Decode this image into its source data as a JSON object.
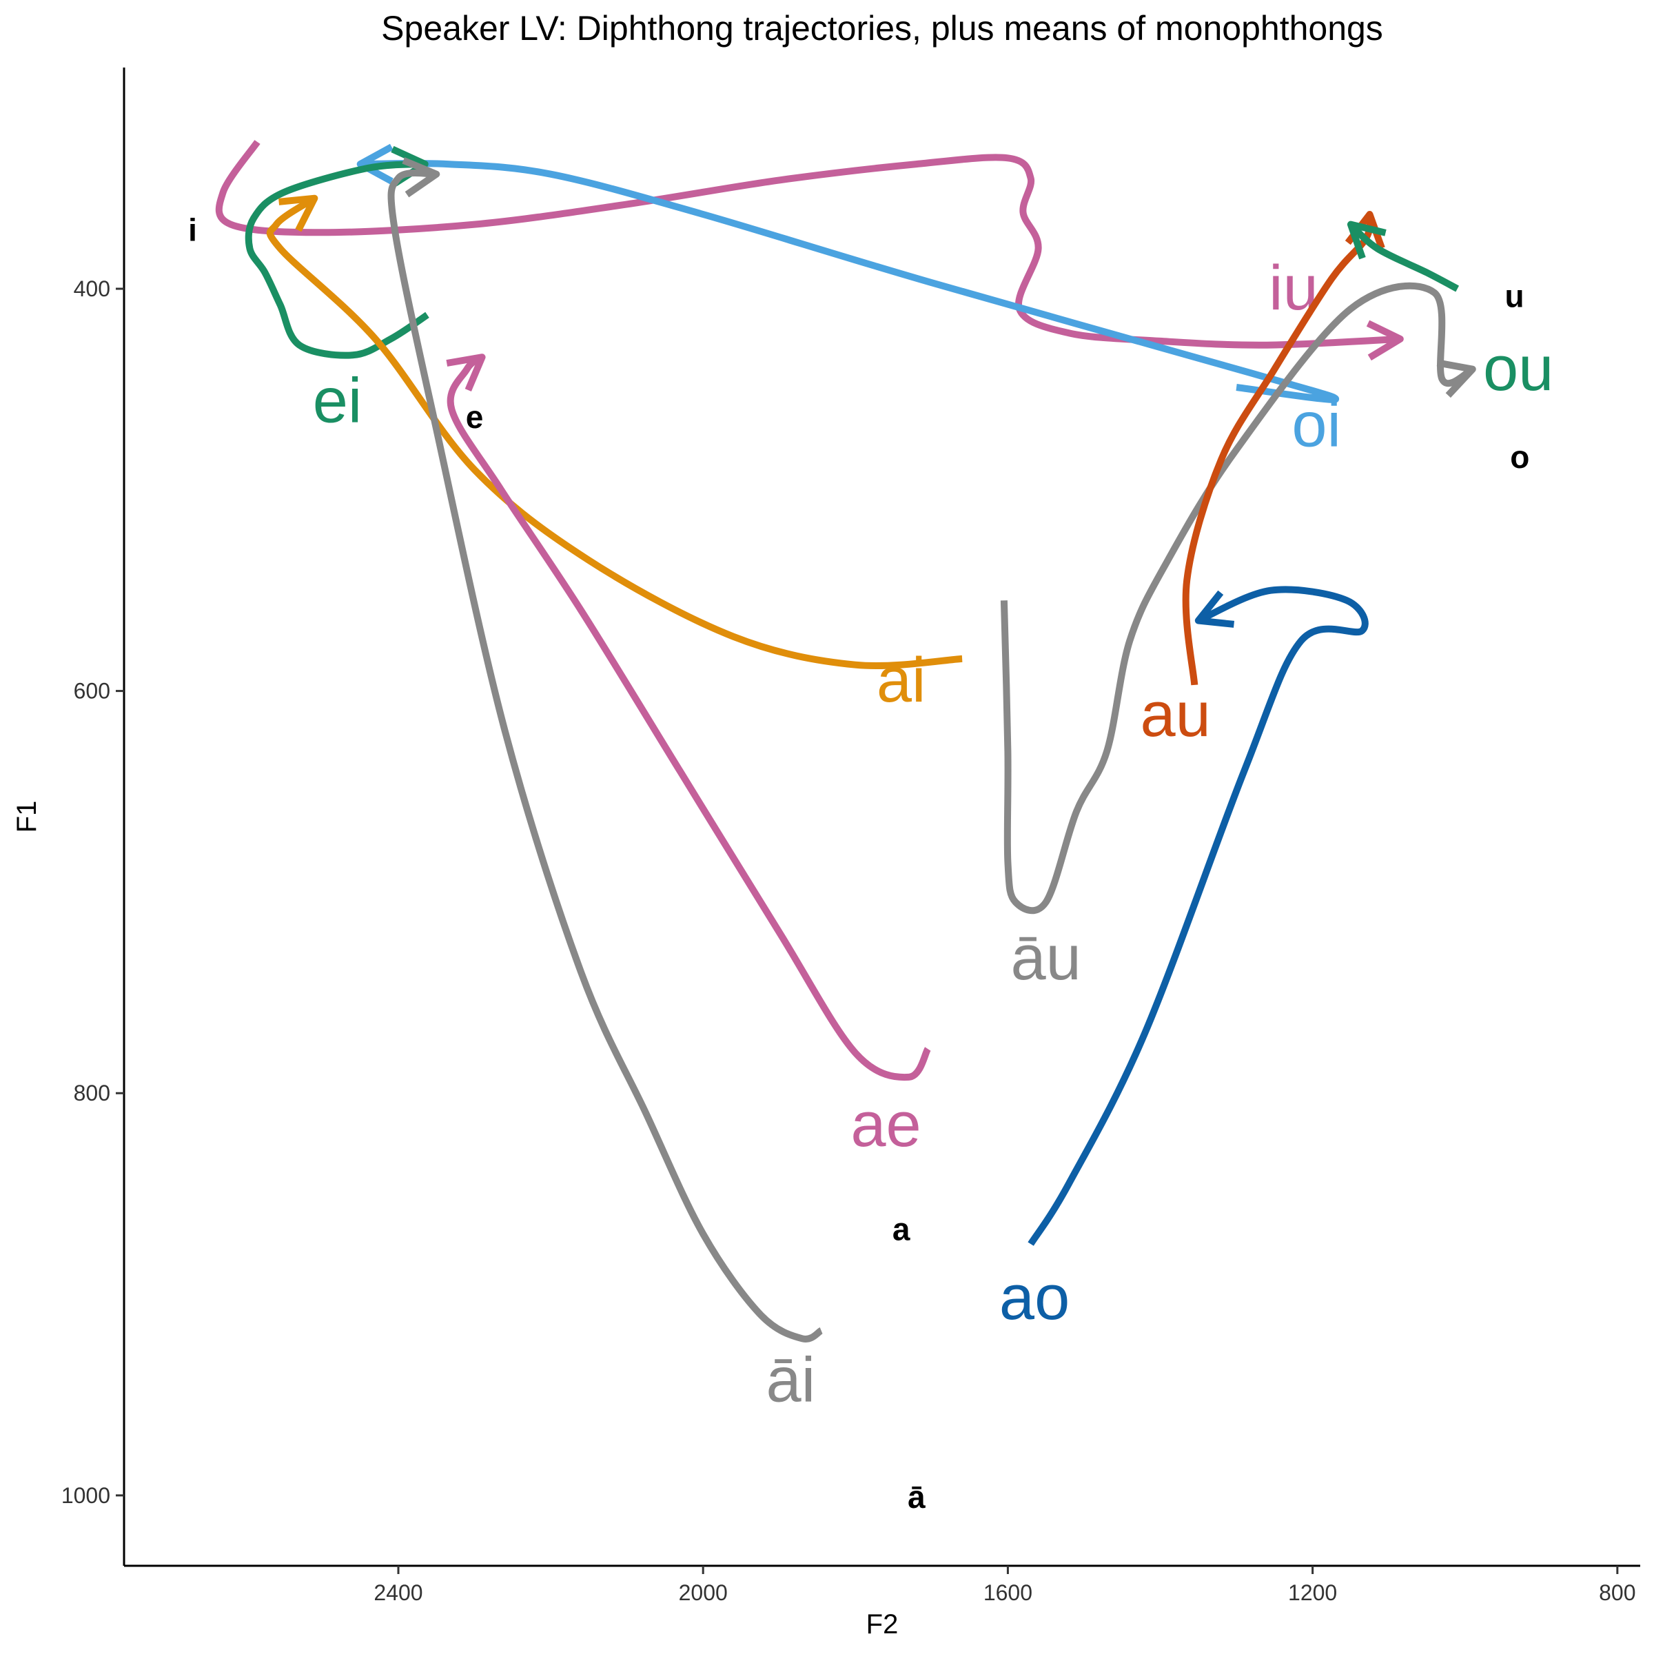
{
  "chart_data": {
    "type": "line",
    "title": "Speaker LV: Diphthong trajectories, plus means of monophthongs",
    "xlabel": "F2",
    "ylabel": "F1",
    "x_axis": {
      "reversed": true,
      "lim": [
        2760,
        770
      ],
      "ticks": [
        2400,
        2000,
        1600,
        1200,
        800
      ]
    },
    "y_axis": {
      "reversed": true,
      "lim": [
        290,
        1035
      ],
      "ticks": [
        400,
        600,
        800,
        1000
      ]
    },
    "grid": false,
    "legend": "none",
    "series": [
      {
        "name": "iu",
        "color": "#C4609A",
        "label_at": [
          1225,
          402
        ],
        "points": [
          [
            2585,
            327
          ],
          [
            2630,
            352
          ],
          [
            2620,
            368
          ],
          [
            2500,
            372
          ],
          [
            2300,
            368
          ],
          [
            2100,
            358
          ],
          [
            1900,
            346
          ],
          [
            1720,
            338
          ],
          [
            1600,
            335
          ],
          [
            1570,
            345
          ],
          [
            1580,
            362
          ],
          [
            1560,
            380
          ],
          [
            1585,
            410
          ],
          [
            1520,
            422
          ],
          [
            1400,
            426
          ],
          [
            1260,
            428
          ],
          [
            1085,
            425
          ]
        ]
      },
      {
        "name": "oi",
        "color": "#4BA3E0",
        "label_at": [
          1195,
          470
        ],
        "points": [
          [
            1300,
            449
          ],
          [
            1170,
            455
          ],
          [
            1280,
            442
          ],
          [
            1700,
            397
          ],
          [
            2000,
            363
          ],
          [
            2200,
            343
          ],
          [
            2335,
            338
          ],
          [
            2450,
            338
          ]
        ]
      },
      {
        "name": "ei",
        "color": "#1A8F63",
        "label_at": [
          2480,
          458
        ],
        "points": [
          [
            2362,
            413
          ],
          [
            2410,
            425
          ],
          [
            2460,
            433
          ],
          [
            2530,
            428
          ],
          [
            2555,
            408
          ],
          [
            2575,
            392
          ],
          [
            2595,
            380
          ],
          [
            2590,
            365
          ],
          [
            2550,
            352
          ],
          [
            2440,
            340
          ],
          [
            2365,
            338
          ]
        ]
      },
      {
        "name": "ai",
        "color": "#E08E0A",
        "label_at": [
          1740,
          597
        ],
        "points": [
          [
            1660,
            584
          ],
          [
            1800,
            587
          ],
          [
            1960,
            573
          ],
          [
            2150,
            535
          ],
          [
            2300,
            490
          ],
          [
            2430,
            425
          ],
          [
            2555,
            380
          ],
          [
            2560,
            368
          ],
          [
            2510,
            355
          ]
        ]
      },
      {
        "name": "ae",
        "color": "#C4609A",
        "label_at": [
          1760,
          818
        ],
        "points": [
          [
            1705,
            778
          ],
          [
            1730,
            792
          ],
          [
            1800,
            780
          ],
          [
            1900,
            720
          ],
          [
            2030,
            640
          ],
          [
            2160,
            560
          ],
          [
            2265,
            500
          ],
          [
            2330,
            460
          ],
          [
            2310,
            440
          ],
          [
            2290,
            434
          ]
        ]
      },
      {
        "name": "āi",
        "color": "#888888",
        "label_at": [
          1885,
          945
        ],
        "points": [
          [
            1845,
            918
          ],
          [
            1870,
            922
          ],
          [
            1925,
            910
          ],
          [
            2000,
            870
          ],
          [
            2075,
            810
          ],
          [
            2160,
            740
          ],
          [
            2260,
            620
          ],
          [
            2350,
            470
          ],
          [
            2405,
            370
          ],
          [
            2400,
            345
          ],
          [
            2350,
            343
          ]
        ]
      },
      {
        "name": "āu",
        "color": "#888888",
        "label_at": [
          1550,
          735
        ],
        "points": [
          [
            1605,
            555
          ],
          [
            1600,
            630
          ],
          [
            1600,
            685
          ],
          [
            1590,
            705
          ],
          [
            1550,
            705
          ],
          [
            1510,
            660
          ],
          [
            1470,
            630
          ],
          [
            1440,
            575
          ],
          [
            1390,
            535
          ],
          [
            1300,
            480
          ],
          [
            1150,
            410
          ],
          [
            1040,
            402
          ],
          [
            1030,
            445
          ],
          [
            990,
            440
          ]
        ]
      },
      {
        "name": "au",
        "color": "#CC4C10",
        "label_at": [
          1380,
          614
        ],
        "points": [
          [
            1355,
            597
          ],
          [
            1365,
            545
          ],
          [
            1320,
            485
          ],
          [
            1250,
            440
          ],
          [
            1175,
            395
          ],
          [
            1130,
            375
          ],
          [
            1125,
            363
          ]
        ]
      },
      {
        "name": "ao",
        "color": "#0D5FA6",
        "label_at": [
          1565,
          904
        ],
        "points": [
          [
            1570,
            875
          ],
          [
            1520,
            845
          ],
          [
            1420,
            770
          ],
          [
            1290,
            640
          ],
          [
            1215,
            575
          ],
          [
            1135,
            570
          ],
          [
            1155,
            555
          ],
          [
            1255,
            550
          ],
          [
            1350,
            565
          ]
        ]
      },
      {
        "name": "ou",
        "color": "#1A8F63",
        "label_at": [
          930,
          442
        ],
        "points": [
          [
            1010,
            400
          ],
          [
            1050,
            392
          ],
          [
            1115,
            380
          ],
          [
            1150,
            368
          ]
        ]
      }
    ],
    "monophthongs": [
      {
        "label": "i",
        "f2": 2670,
        "f1": 372
      },
      {
        "label": "e",
        "f2": 2300,
        "f1": 465
      },
      {
        "label": "a",
        "f2": 1740,
        "f1": 869
      },
      {
        "label": "ā",
        "f2": 1720,
        "f1": 1002
      },
      {
        "label": "u",
        "f2": 935,
        "f1": 405
      },
      {
        "label": "o",
        "f2": 928,
        "f1": 485
      }
    ]
  }
}
